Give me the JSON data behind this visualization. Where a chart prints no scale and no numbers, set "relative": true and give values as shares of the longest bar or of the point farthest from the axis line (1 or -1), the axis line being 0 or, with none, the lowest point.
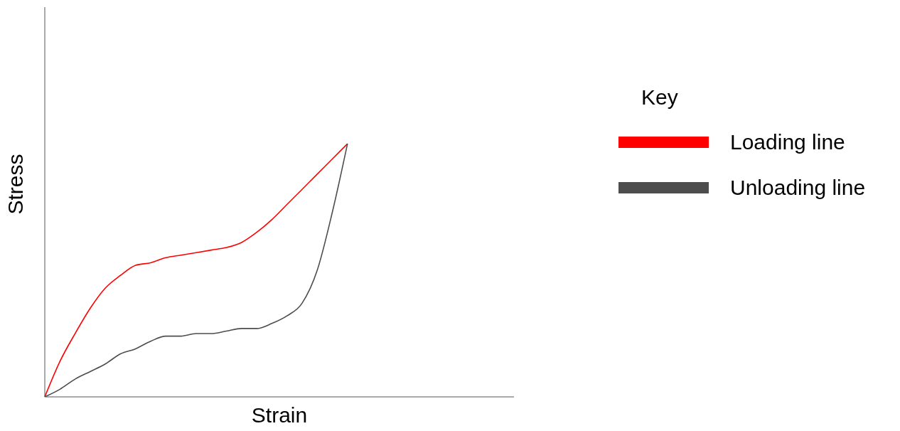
{
  "chart_data": {
    "type": "line",
    "relative": true,
    "xlabel": "Strain",
    "ylabel": "Stress",
    "legend_title": "Key",
    "legend": "right",
    "categories": [
      null,
      null,
      null,
      null,
      null,
      null,
      null,
      null,
      null,
      null,
      null,
      null,
      null,
      null,
      null,
      null,
      null,
      null,
      null,
      null,
      null,
      null,
      null,
      null,
      null,
      null,
      null,
      null,
      null,
      null,
      null,
      null
    ],
    "series": [
      {
        "name": "Loading line",
        "color": "#ff0000",
        "values": [
          0,
          0.14,
          0.25,
          0.35,
          0.43,
          0.48,
          0.52,
          0.53,
          0.55,
          0.56,
          0.57,
          0.58,
          0.59,
          0.61,
          0.65,
          0.7,
          0.76,
          0.82,
          0.88,
          0.94,
          1,
          null,
          null,
          null,
          null,
          null,
          null,
          null,
          null,
          null,
          null,
          null
        ]
      },
      {
        "name": "Unloading line",
        "color": "#4d4d4d",
        "values": [
          0,
          0.03,
          0.07,
          0.1,
          0.13,
          0.17,
          0.19,
          0.22,
          0.24,
          0.24,
          0.25,
          0.25,
          0.26,
          0.27,
          0.27,
          0.29,
          0.32,
          0.37,
          0.5,
          0.73,
          1,
          null,
          null,
          null,
          null,
          null,
          null,
          null,
          null,
          null,
          null,
          null
        ]
      }
    ]
  }
}
